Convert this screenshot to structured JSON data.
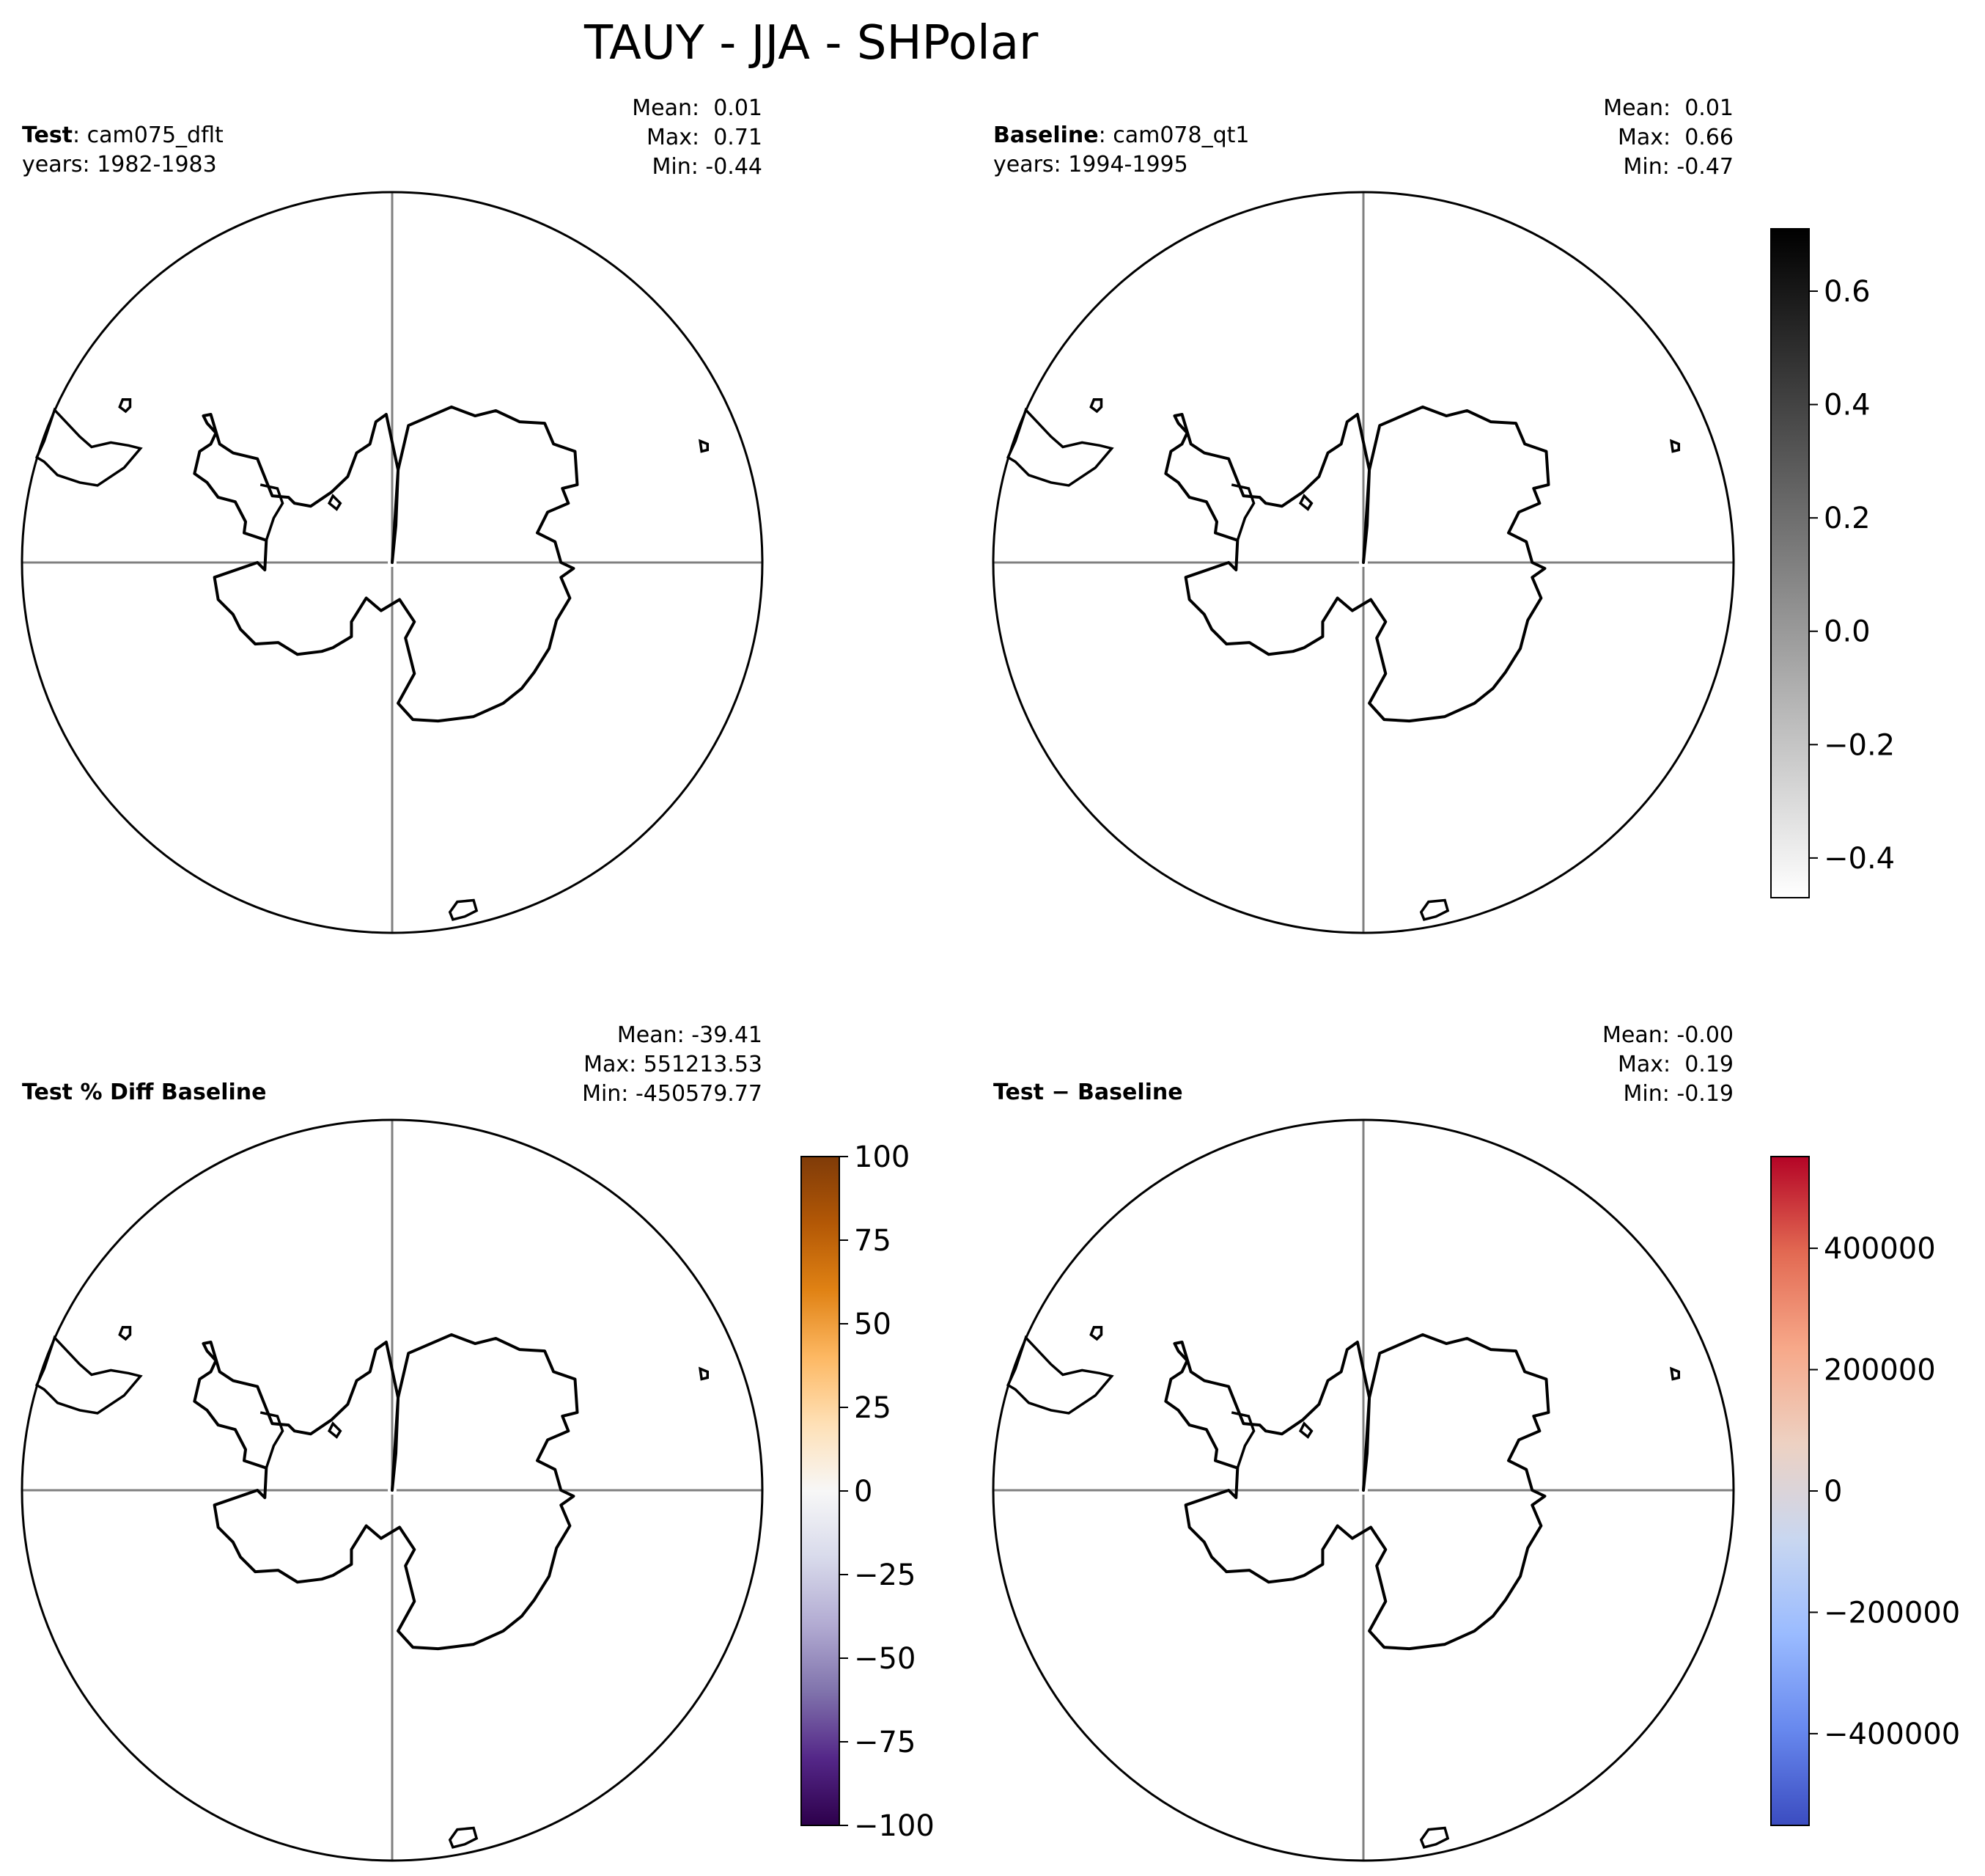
{
  "figure": {
    "title": "TAUY - JJA - SHPolar"
  },
  "colors": {
    "coastline": "#000000",
    "gridline": "#808080",
    "frame": "#000000"
  },
  "chart_data": [
    {
      "type": "map",
      "projection": "south-polar-stereographic",
      "panel": "test",
      "label_bold": "Test",
      "label_name": ": cam075_dflt",
      "years": "years: 1982-1983",
      "stats": {
        "mean": "Mean:  0.01",
        "max": "Max:  0.71",
        "min": "Min: -0.44"
      },
      "colorbar": null
    },
    {
      "type": "map",
      "projection": "south-polar-stereographic",
      "panel": "baseline",
      "label_bold": "Baseline",
      "label_name": ": cam078_qt1",
      "years": "years: 1994-1995",
      "stats": {
        "mean": "Mean:  0.01",
        "max": "Max:  0.66",
        "min": "Min: -0.47"
      },
      "colorbar": {
        "cmap": "Greys",
        "colors": [
          "#ffffff",
          "#000000"
        ],
        "range": [
          -0.47,
          0.71
        ],
        "ticks": [
          -0.4,
          -0.2,
          0.0,
          0.2,
          0.4,
          0.6
        ],
        "tick_labels": [
          "−0.4",
          "−0.2",
          "0.0",
          "0.2",
          "0.4",
          "0.6"
        ]
      }
    },
    {
      "type": "map",
      "projection": "south-polar-stereographic",
      "panel": "pct-diff",
      "label_bold": "Test % Diff Baseline",
      "label_name": "",
      "years": "",
      "stats": {
        "mean": "Mean: -39.41",
        "max": "Max: 551213.53",
        "min": "Min: -450579.77"
      },
      "colorbar": {
        "cmap": "PuOr_r",
        "colors": [
          "#2d004b",
          "#542788",
          "#8073ac",
          "#b2abd2",
          "#d8daeb",
          "#f7f7f7",
          "#fee0b6",
          "#fdb863",
          "#e08214",
          "#b35806",
          "#7f3b08"
        ],
        "range": [
          -100,
          100
        ],
        "ticks": [
          -100,
          -75,
          -50,
          -25,
          0,
          25,
          50,
          75,
          100
        ],
        "tick_labels": [
          "−100",
          "−75",
          "−50",
          "−25",
          "0",
          "25",
          "50",
          "75",
          "100"
        ]
      }
    },
    {
      "type": "map",
      "projection": "south-polar-stereographic",
      "panel": "diff",
      "label_bold": "Test − Baseline",
      "label_name": "",
      "years": "",
      "stats": {
        "mean": "Mean: -0.00",
        "max": "Max:  0.19",
        "min": "Min: -0.19"
      },
      "colorbar": {
        "cmap": "coolwarm",
        "colors": [
          "#3b4cc0",
          "#6788ee",
          "#9abbff",
          "#c9d7f0",
          "#edd1c2",
          "#f7a889",
          "#e26952",
          "#b40426"
        ],
        "range": [
          -551213.53,
          551213.53
        ],
        "ticks": [
          -400000,
          -200000,
          0,
          200000,
          400000
        ],
        "tick_labels": [
          "−400000",
          "−200000",
          "0",
          "200000",
          "400000"
        ]
      }
    }
  ]
}
